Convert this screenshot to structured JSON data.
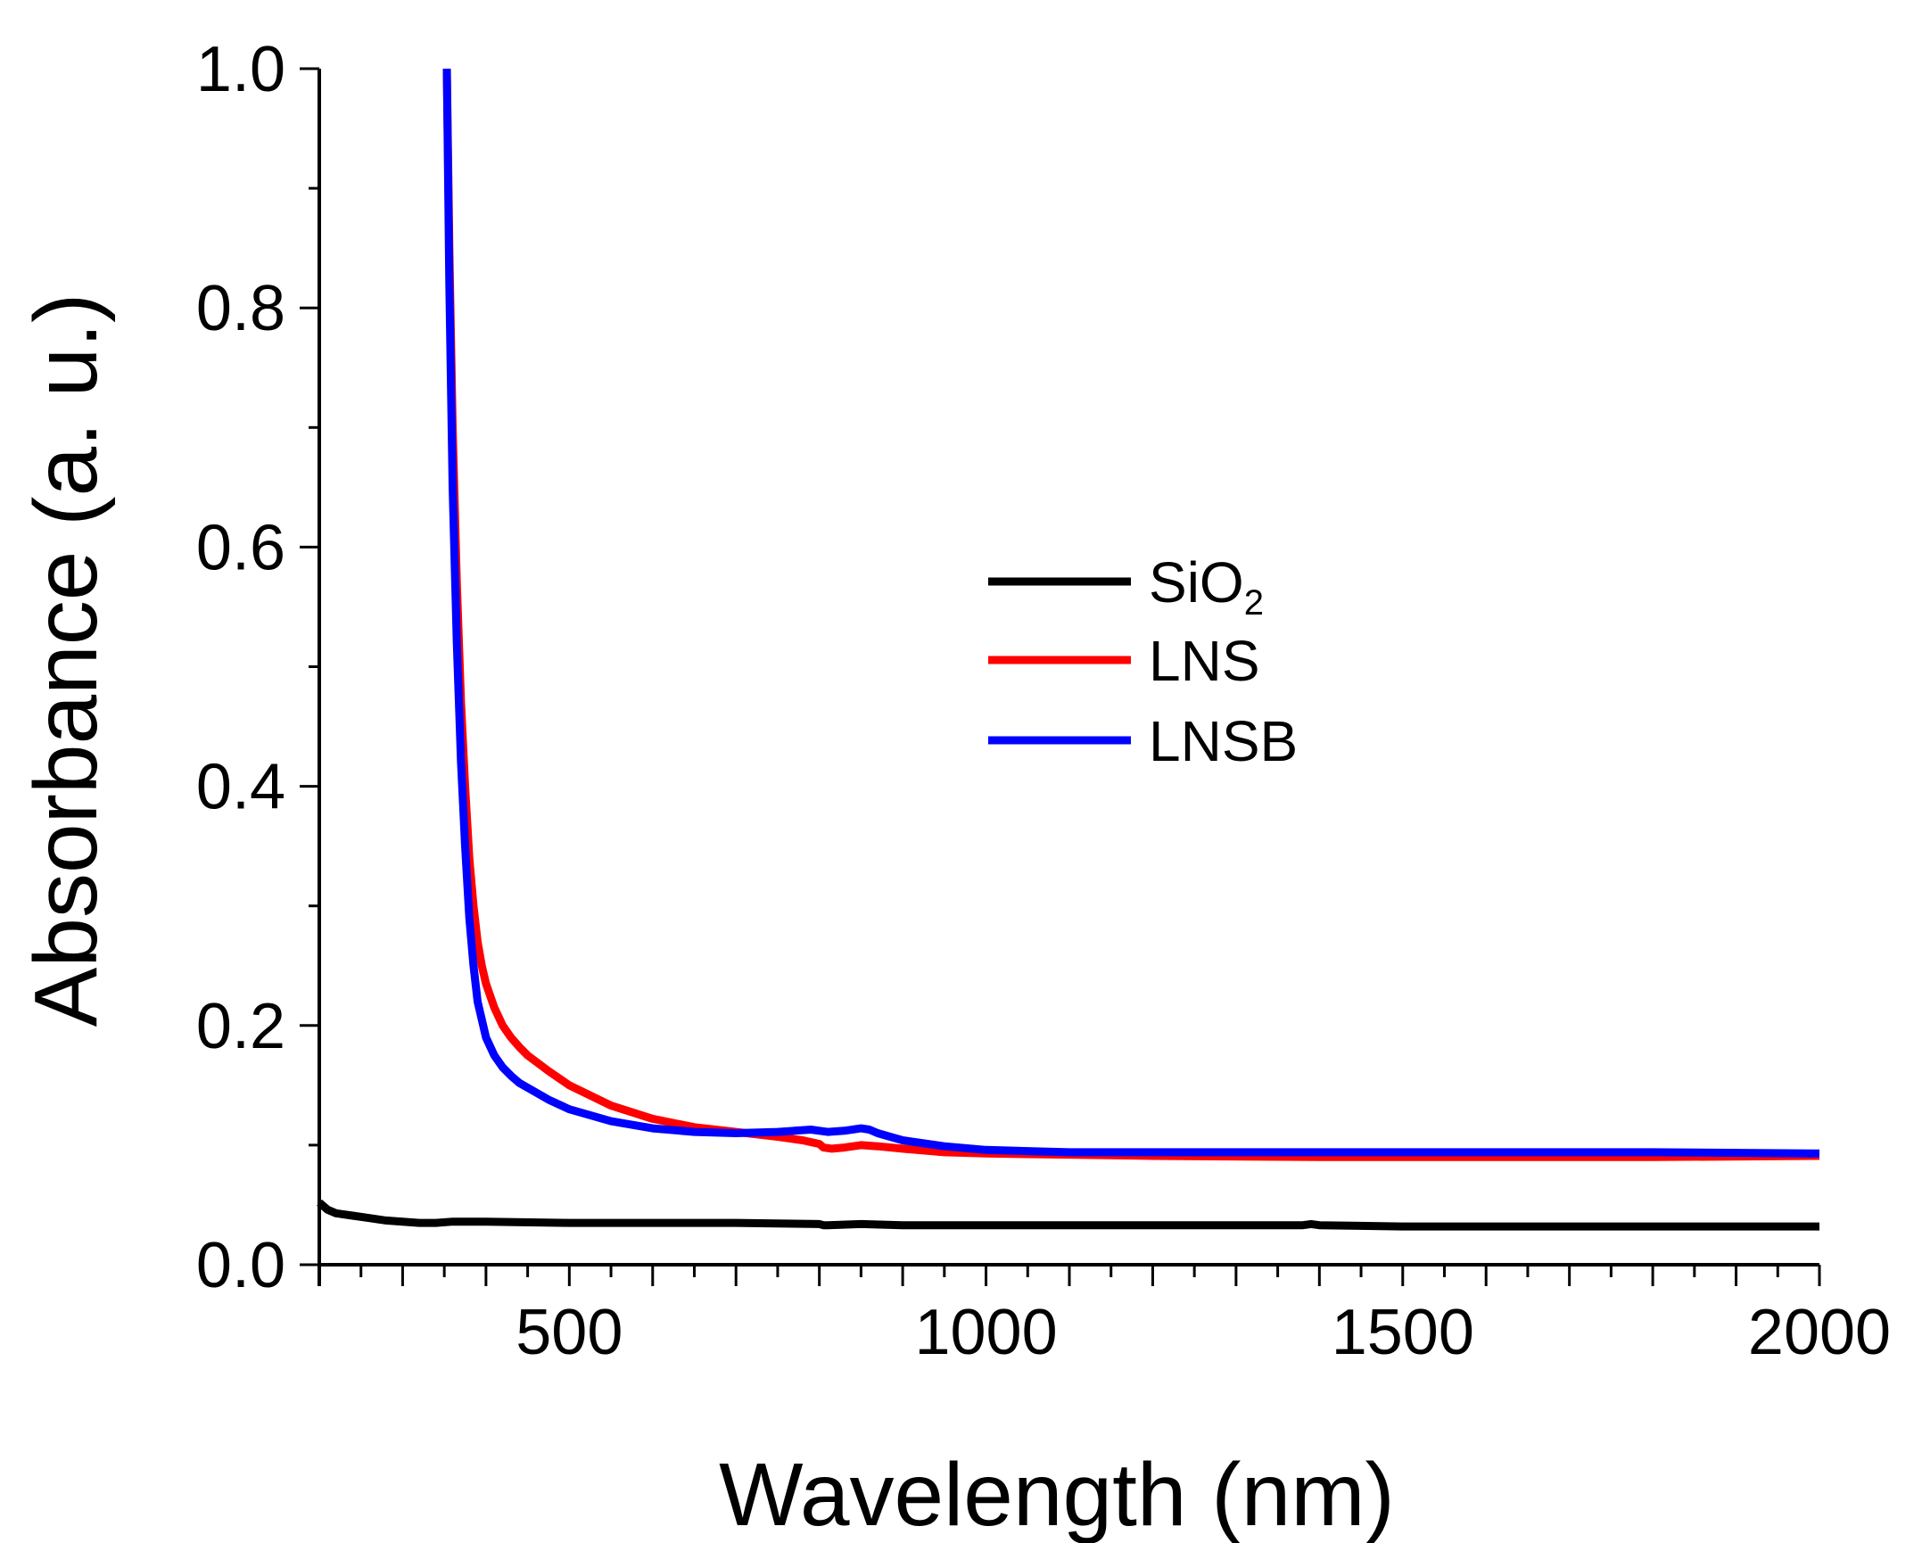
{
  "chart_data": {
    "type": "line",
    "title": "",
    "xlabel": "Wavelength (nm)",
    "ylabel": "Absorbance (a. u.)",
    "xlim": [
      200,
      2000
    ],
    "ylim": [
      0.0,
      1.0
    ],
    "xticks": [
      500,
      1000,
      1500,
      2000
    ],
    "xtick_labels": [
      "500",
      "1000",
      "1500",
      "2000"
    ],
    "yticks": [
      0.0,
      0.2,
      0.4,
      0.6,
      0.8,
      1.0
    ],
    "ytick_labels": [
      "0.0",
      "0.2",
      "0.4",
      "0.6",
      "0.8",
      "1.0"
    ],
    "grid": false,
    "legend_position": "center-right",
    "series": [
      {
        "name": "SiO2",
        "label_main": "SiO",
        "label_sub": "2",
        "color": "#000000",
        "x": [
          200,
          210,
          220,
          240,
          260,
          280,
          300,
          320,
          340,
          360,
          400,
          500,
          600,
          700,
          800,
          805,
          810,
          850,
          900,
          1000,
          1200,
          1380,
          1390,
          1400,
          1500,
          1700,
          2000
        ],
        "y": [
          0.052,
          0.046,
          0.043,
          0.041,
          0.039,
          0.037,
          0.036,
          0.035,
          0.035,
          0.036,
          0.036,
          0.035,
          0.035,
          0.035,
          0.034,
          0.033,
          0.033,
          0.034,
          0.033,
          0.033,
          0.033,
          0.033,
          0.034,
          0.033,
          0.032,
          0.032,
          0.032
        ]
      },
      {
        "name": "LNS",
        "label_main": "LNS",
        "label_sub": "",
        "color": "#ff0000",
        "x": [
          353,
          356,
          360,
          365,
          370,
          375,
          380,
          385,
          390,
          395,
          400,
          410,
          420,
          430,
          440,
          450,
          475,
          500,
          550,
          600,
          650,
          700,
          750,
          780,
          800,
          805,
          815,
          830,
          850,
          870,
          900,
          950,
          1000,
          1100,
          1200,
          1400,
          1600,
          1800,
          2000
        ],
        "y": [
          1.0,
          0.85,
          0.7,
          0.57,
          0.47,
          0.4,
          0.34,
          0.3,
          0.27,
          0.25,
          0.235,
          0.215,
          0.2,
          0.19,
          0.182,
          0.175,
          0.162,
          0.15,
          0.133,
          0.122,
          0.115,
          0.111,
          0.107,
          0.104,
          0.101,
          0.098,
          0.097,
          0.098,
          0.1,
          0.099,
          0.097,
          0.094,
          0.093,
          0.092,
          0.091,
          0.09,
          0.09,
          0.09,
          0.091
        ]
      },
      {
        "name": "LNSB",
        "label_main": "LNSB",
        "label_sub": "",
        "color": "#0000ff",
        "x": [
          353,
          356,
          360,
          365,
          370,
          375,
          380,
          385,
          390,
          400,
          410,
          420,
          430,
          440,
          450,
          475,
          500,
          550,
          600,
          650,
          700,
          750,
          790,
          800,
          810,
          830,
          850,
          860,
          870,
          900,
          950,
          1000,
          1100,
          1200,
          1400,
          1600,
          1800,
          2000
        ],
        "y": [
          1.0,
          0.82,
          0.65,
          0.52,
          0.42,
          0.35,
          0.29,
          0.25,
          0.22,
          0.19,
          0.175,
          0.165,
          0.158,
          0.152,
          0.148,
          0.138,
          0.13,
          0.12,
          0.114,
          0.111,
          0.11,
          0.111,
          0.113,
          0.112,
          0.111,
          0.112,
          0.114,
          0.113,
          0.11,
          0.104,
          0.099,
          0.096,
          0.094,
          0.094,
          0.094,
          0.094,
          0.094,
          0.093
        ]
      }
    ]
  }
}
